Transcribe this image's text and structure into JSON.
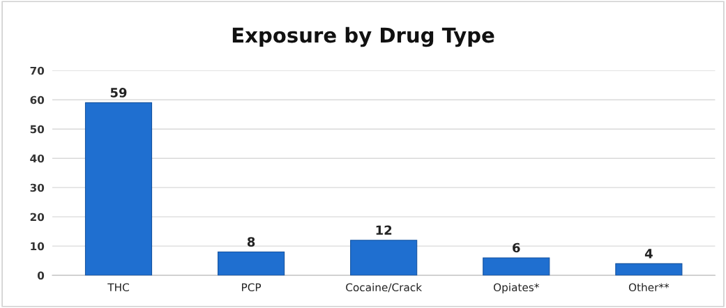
{
  "chart_data": {
    "type": "bar",
    "title": "Exposure by Drug Type",
    "categories": [
      "THC",
      "PCP",
      "Cocaine/Crack",
      "Opiates*",
      "Other**"
    ],
    "values": [
      59,
      8,
      12,
      6,
      4
    ],
    "color": "#1f6fd0",
    "ylim": [
      0,
      70
    ],
    "yticks": [
      0,
      10,
      20,
      30,
      40,
      50,
      60,
      70
    ],
    "grid": "y",
    "data_labels": true
  }
}
